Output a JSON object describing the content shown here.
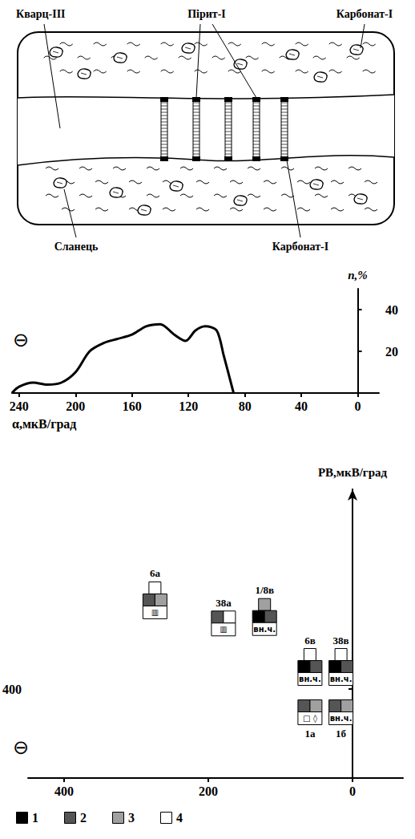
{
  "diagram": {
    "quartz": "Кварц-III",
    "pyrite": "Пірит-I",
    "carbonate_top": "Карбонат-I",
    "shale": "Сланець",
    "carbonate_bottom": "Карбонат-I"
  },
  "chart_data": [
    {
      "type": "line",
      "xlabel": "α,мкВ/град",
      "ylabel": "n,%",
      "annotation": "⊖",
      "x": [
        245,
        240,
        230,
        220,
        210,
        200,
        190,
        180,
        170,
        160,
        150,
        140,
        130,
        122,
        115,
        108,
        100,
        95,
        88
      ],
      "values": [
        0,
        3,
        5,
        4,
        5,
        10,
        20,
        24,
        26,
        28,
        32,
        33,
        28,
        25,
        30,
        32,
        30,
        18,
        0
      ],
      "color": "#000000",
      "xlim": [
        245,
        -15
      ],
      "xticks": [
        240,
        200,
        160,
        120,
        80,
        40,
        0
      ],
      "ylim": [
        0,
        50
      ],
      "yticks": [
        20,
        40
      ],
      "grid": false
    },
    {
      "type": "scatter",
      "ylabel": "РВ,мкВ/град",
      "annotation": "⊖",
      "points": [
        {
          "name": "6а",
          "x": 274,
          "y": 800,
          "rows": [
            [
              4
            ],
            [
              2,
              3
            ]
          ],
          "box": "▥"
        },
        {
          "name": "38а",
          "x": 179,
          "y": 696,
          "rows": [
            [
              2,
              4
            ]
          ],
          "box": "▥"
        },
        {
          "name": "1/8в",
          "x": 122,
          "y": 725,
          "rows": [
            [
              3
            ],
            [
              1,
              2
            ]
          ],
          "box": "вн.ч."
        },
        {
          "name": "6в",
          "x": 59,
          "y": 500,
          "rows": [
            [
              4
            ],
            [
              1,
              2
            ]
          ],
          "box": "вн.ч."
        },
        {
          "name": "38в",
          "x": 16,
          "y": 500,
          "rows": [
            [
              4
            ],
            [
              1,
              2
            ]
          ],
          "box": "вн.ч."
        },
        {
          "name": "1а",
          "x": 59,
          "y": 296,
          "rows": [
            [
              2,
              3
            ]
          ],
          "box": "□ ◊"
        },
        {
          "name": "1б",
          "x": 16,
          "y": 296,
          "rows": [
            [
              2,
              3
            ]
          ],
          "box": "вн.ч."
        }
      ],
      "classes": [
        {
          "name": "1",
          "color": "#000000"
        },
        {
          "name": "2",
          "color": "#555555"
        },
        {
          "name": "3",
          "color": "#a0a0a0"
        },
        {
          "name": "4",
          "color": "#ffffff"
        }
      ],
      "xlim": [
        450,
        -70
      ],
      "xticks": [
        400,
        200,
        0
      ],
      "ylim": [
        0,
        1300
      ],
      "yticks": [
        400
      ],
      "grid": false,
      "legend": "bottom"
    }
  ]
}
